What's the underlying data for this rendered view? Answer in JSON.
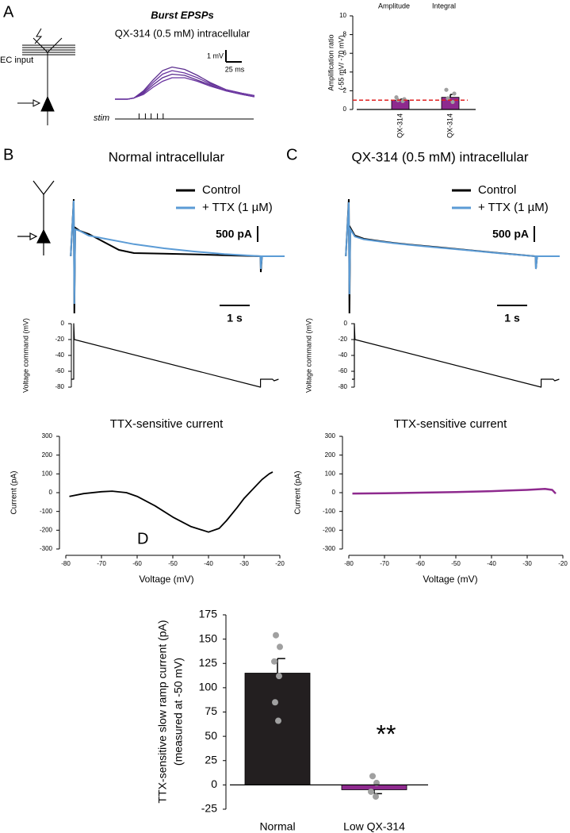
{
  "chart_data": [
    {
      "type": "trace",
      "panel_label": "A",
      "title": "Burst EPSPs",
      "subtitle": "QX-314 (0.5 mM) intracellular",
      "annotations": [
        "EC input",
        "stim"
      ],
      "scalebar_y": {
        "value": 1,
        "label": "1 mV"
      },
      "scalebar_x": {
        "value": 25,
        "label": "25 ms"
      },
      "stim_times": [
        38,
        48,
        57,
        67,
        76
      ],
      "x": [
        0,
        20,
        30,
        45,
        60,
        75,
        90,
        110,
        130,
        150,
        175,
        200,
        220
      ],
      "series": [
        {
          "color": "#5b2d8e",
          "values": [
            0,
            0,
            0.1,
            0.7,
            1.6,
            2.4,
            2.7,
            2.5,
            2.0,
            1.4,
            0.8,
            0.5,
            0.3
          ]
        },
        {
          "color": "#6a34a0",
          "values": [
            0,
            0,
            0.1,
            0.6,
            1.4,
            2.1,
            2.4,
            2.2,
            1.8,
            1.3,
            0.8,
            0.5,
            0.3
          ]
        },
        {
          "color": "#5b2d8e",
          "values": [
            0,
            0,
            0.1,
            0.5,
            1.2,
            1.8,
            2.1,
            2.0,
            1.6,
            1.2,
            0.7,
            0.4,
            0.2
          ]
        },
        {
          "color": "#6a34a0",
          "values": [
            0,
            0,
            0.1,
            0.4,
            1.0,
            1.5,
            1.8,
            1.8,
            1.5,
            1.1,
            0.7,
            0.4,
            0.2
          ]
        }
      ]
    },
    {
      "type": "bar",
      "headers": [
        "Amplitude",
        "Integral"
      ],
      "categories": [
        "QX-314",
        "QX-314"
      ],
      "y_label": [
        "Amplification ratio",
        "(-55 mV/ -70 mV)"
      ],
      "values": [
        1.0,
        1.3
      ],
      "errors": [
        0.1,
        0.3
      ],
      "points": [
        [
          1.3,
          1.1,
          1.0,
          0.9
        ],
        [
          2.1,
          1.7,
          1.2,
          0.8
        ]
      ],
      "color": "#8e2a8e",
      "reference_line": 1,
      "reference_color": "#e02020",
      "ylim": [
        0,
        10
      ],
      "yticks": [
        0,
        2,
        4,
        6,
        8,
        10
      ]
    },
    {
      "type": "trace",
      "panel_label": "B",
      "title": "Normal intracellular",
      "scalebar_y": {
        "value": 500,
        "label": "500 pA"
      },
      "scalebar_x": {
        "value": 1,
        "label": "1 s"
      },
      "x": [
        -0.1,
        0,
        0.02,
        0.05,
        0.2,
        0.5,
        1,
        1.5,
        2,
        3,
        4,
        5,
        6.2,
        6.21,
        6.25,
        7.0
      ],
      "series": [
        {
          "name": "Control",
          "color": "#000000",
          "values": [
            0,
            1800,
            -1800,
            900,
            800,
            700,
            450,
            200,
            100,
            80,
            60,
            30,
            0,
            -500,
            0,
            0
          ]
        },
        {
          "name": "+ TTX (1 µM)",
          "color": "#5b9bd5",
          "values": [
            0,
            1750,
            -1500,
            850,
            800,
            650,
            560,
            470,
            380,
            250,
            150,
            70,
            0,
            -400,
            0,
            0
          ]
        }
      ]
    },
    {
      "type": "line",
      "y_label": "Voltage command (mV)",
      "ylim": [
        -80,
        0
      ],
      "yticks": [
        0,
        -20,
        -40,
        -60,
        -80
      ],
      "x": [
        -0.08,
        0,
        0,
        0.02,
        6.2,
        6.2,
        6.6,
        6.65,
        6.8
      ],
      "series": [
        {
          "color": "#000000",
          "values": [
            -70,
            -70,
            0,
            -20,
            -80,
            -70,
            -70,
            -72,
            -70
          ]
        }
      ]
    },
    {
      "type": "line",
      "title": "TTX-sensitive current",
      "x_label": "Voltage (mV)",
      "y_label": "Current (pA)",
      "xlim": [
        -80,
        -20
      ],
      "xticks": [
        -80,
        -70,
        -60,
        -50,
        -40,
        -30,
        -20
      ],
      "ylim": [
        -300,
        300
      ],
      "yticks": [
        -300,
        -200,
        -100,
        0,
        100,
        200,
        300
      ],
      "x": [
        -79,
        -75,
        -70,
        -67,
        -63,
        -60,
        -55,
        -50,
        -45,
        -40,
        -37,
        -35,
        -32,
        -30,
        -27,
        -25,
        -23,
        -22
      ],
      "series": [
        {
          "color": "#000000",
          "values": [
            -20,
            -5,
            5,
            8,
            0,
            -20,
            -70,
            -130,
            -180,
            -210,
            -190,
            -150,
            -80,
            -30,
            30,
            70,
            100,
            110
          ]
        }
      ]
    },
    {
      "type": "trace",
      "panel_label": "C",
      "title": "QX-314 (0.5 mM) intracellular",
      "scalebar_y": {
        "value": 500,
        "label": "500 pA"
      },
      "scalebar_x": {
        "value": 1,
        "label": "1 s"
      },
      "x": [
        -0.1,
        0,
        0.02,
        0.05,
        0.2,
        0.5,
        1,
        1.5,
        2,
        3,
        4,
        5,
        6.2,
        6.21,
        6.25,
        7.0
      ],
      "series": [
        {
          "name": "Control",
          "color": "#000000",
          "values": [
            0,
            1800,
            -1800,
            900,
            650,
            550,
            480,
            420,
            370,
            280,
            190,
            100,
            0,
            -400,
            0,
            0
          ]
        },
        {
          "name": "+ TTX (1 µM)",
          "color": "#5b9bd5",
          "values": [
            0,
            1700,
            -1200,
            850,
            620,
            530,
            470,
            410,
            360,
            270,
            185,
            95,
            0,
            -400,
            0,
            0
          ]
        }
      ]
    },
    {
      "type": "line",
      "y_label": "Voltage command (mV)",
      "ylim": [
        -80,
        0
      ],
      "yticks": [
        0,
        -20,
        -40,
        -60,
        -80
      ],
      "x": [
        -0.08,
        0,
        0,
        0.02,
        6.2,
        6.2,
        6.6,
        6.65,
        6.8
      ],
      "series": [
        {
          "color": "#000000",
          "values": [
            -70,
            -70,
            0,
            -20,
            -80,
            -70,
            -70,
            -72,
            -70
          ]
        }
      ]
    },
    {
      "type": "line",
      "title": "TTX-sensitive current",
      "x_label": "Voltage (mV)",
      "y_label": "Current (pA)",
      "xlim": [
        -80,
        -20
      ],
      "xticks": [
        -80,
        -70,
        -60,
        -50,
        -40,
        -30,
        -20
      ],
      "ylim": [
        -300,
        300
      ],
      "yticks": [
        -300,
        -200,
        -100,
        0,
        100,
        200,
        300
      ],
      "x": [
        -79,
        -70,
        -60,
        -50,
        -40,
        -30,
        -25,
        -23,
        -22
      ],
      "series": [
        {
          "color": "#8e2a8e",
          "values": [
            -5,
            -3,
            0,
            3,
            8,
            15,
            20,
            15,
            -5
          ]
        }
      ]
    },
    {
      "type": "bar",
      "panel_label": "D",
      "annotations": [
        "**"
      ],
      "y_label": [
        "TTX-sensitive slow ramp current (pA)",
        "(measured at -50 mV)"
      ],
      "categories": [
        "Normal",
        "Low QX-314"
      ],
      "values": [
        115,
        -5
      ],
      "errors": [
        15,
        4
      ],
      "points": [
        [
          154,
          142,
          127,
          112,
          85,
          66
        ],
        [
          9,
          2,
          -7,
          -12
        ]
      ],
      "colors": [
        "#231f20",
        "#8e2a8e"
      ],
      "ylim": [
        -25,
        175
      ],
      "yticks": [
        -25,
        0,
        25,
        50,
        75,
        100,
        125,
        150,
        175
      ]
    }
  ]
}
